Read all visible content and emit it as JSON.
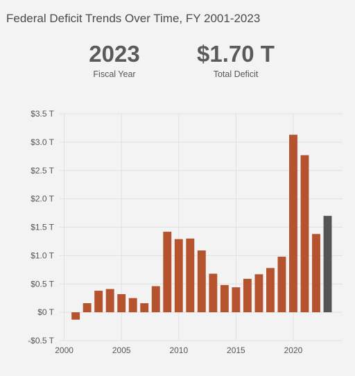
{
  "header": {
    "title": "Federal Deficit Trends Over Time, FY 2001-2023"
  },
  "stats": {
    "fiscal_year_value": "2023",
    "fiscal_year_label": "Fiscal Year",
    "deficit_value": "$1.70 T",
    "deficit_label": "Total Deficit"
  },
  "colors": {
    "bar": "#b5532f",
    "highlight": "#555555",
    "grid": "#e0e0e0"
  },
  "chart_data": {
    "type": "bar",
    "title": "",
    "xlabel": "",
    "ylabel": "",
    "x": [
      2001,
      2002,
      2003,
      2004,
      2005,
      2006,
      2007,
      2008,
      2009,
      2010,
      2011,
      2012,
      2013,
      2014,
      2015,
      2016,
      2017,
      2018,
      2019,
      2020,
      2021,
      2022,
      2023
    ],
    "values": [
      -0.13,
      0.16,
      0.38,
      0.41,
      0.32,
      0.25,
      0.16,
      0.46,
      1.42,
      1.29,
      1.3,
      1.09,
      0.68,
      0.48,
      0.44,
      0.59,
      0.67,
      0.78,
      0.98,
      3.13,
      2.77,
      1.38,
      1.7
    ],
    "highlight_x": 2023,
    "xlim": [
      1999.6,
      2024.3
    ],
    "ylim": [
      -0.5,
      3.5
    ],
    "x_ticks": [
      2000,
      2005,
      2010,
      2015,
      2020
    ],
    "x_tick_labels": [
      "2000",
      "2005",
      "2010",
      "2015",
      "2020"
    ],
    "y_ticks": [
      -0.5,
      0,
      0.5,
      1.0,
      1.5,
      2.0,
      2.5,
      3.0,
      3.5
    ],
    "y_tick_labels": [
      "-$0.5 T",
      "$0 T",
      "$0.5 T",
      "$1.0 T",
      "$1.5 T",
      "$2.0 T",
      "$2.5 T",
      "$3.0 T",
      "$3.5 T"
    ],
    "grid": true,
    "legend": "none"
  }
}
